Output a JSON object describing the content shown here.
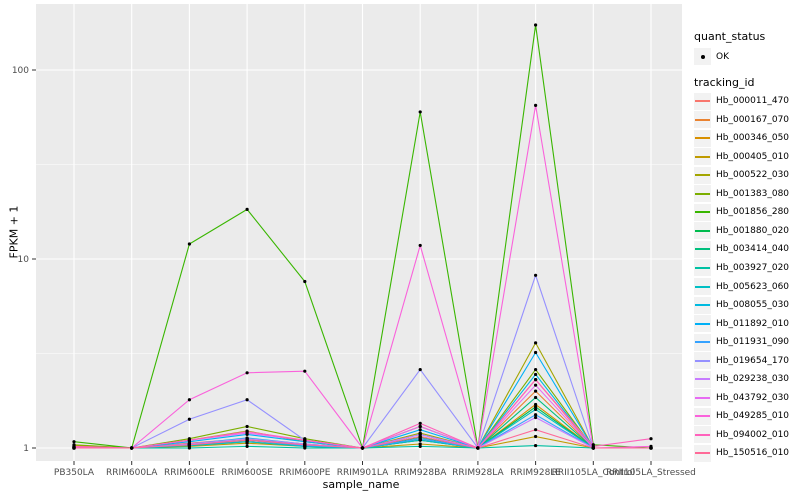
{
  "colors": {
    "panel_bg": "#EBEBEB",
    "grid": "#FFFFFF",
    "tick_text": "#4D4D4D",
    "tick_mark": "#333333",
    "text": "#000000",
    "point": "#000000",
    "legend_key_bg": "#F2F2F2"
  },
  "axes": {
    "x": {
      "title": "sample_name",
      "tick_labels": [
        "PB350LA",
        "RRIM600LA",
        "RRIM600LE",
        "RRIM600SE",
        "RRIM600PE",
        "RRIM901LA",
        "RRIM928BA",
        "RRIM928LA",
        "RRIM928LE",
        "RRII105LA_Control",
        "RRII105LA_Stressed"
      ]
    },
    "y": {
      "title": "FPKM + 1",
      "scale": "log10",
      "tick_labels": [
        "100",
        "10",
        "1"
      ],
      "tick_values": [
        100,
        10,
        1
      ],
      "minor_values": [
        31.623,
        3.1623
      ]
    }
  },
  "legend": {
    "quant_status": {
      "title": "quant_status",
      "items": [
        {
          "label": "OK",
          "marker": "black-point"
        }
      ]
    },
    "tracking_id": {
      "title": "tracking_id",
      "items": [
        {
          "label": "Hb_000011_470",
          "color": "#F8766D"
        },
        {
          "label": "Hb_000167_070",
          "color": "#EA8331"
        },
        {
          "label": "Hb_000346_050",
          "color": "#D89000"
        },
        {
          "label": "Hb_000405_010",
          "color": "#C09B00"
        },
        {
          "label": "Hb_000522_030",
          "color": "#A3A500"
        },
        {
          "label": "Hb_001383_080",
          "color": "#7CAE00"
        },
        {
          "label": "Hb_001856_280",
          "color": "#39B600"
        },
        {
          "label": "Hb_001880_020",
          "color": "#00BB4E"
        },
        {
          "label": "Hb_003414_040",
          "color": "#00BF7D"
        },
        {
          "label": "Hb_003927_020",
          "color": "#00C1A3"
        },
        {
          "label": "Hb_005623_060",
          "color": "#00BFC4"
        },
        {
          "label": "Hb_008055_030",
          "color": "#00BAE0"
        },
        {
          "label": "Hb_011892_010",
          "color": "#00B0F6"
        },
        {
          "label": "Hb_011931_090",
          "color": "#35A2FF"
        },
        {
          "label": "Hb_019654_170",
          "color": "#9590FF"
        },
        {
          "label": "Hb_029238_030",
          "color": "#C77CFF"
        },
        {
          "label": "Hb_043792_030",
          "color": "#E76BF3"
        },
        {
          "label": "Hb_049285_010",
          "color": "#FA62DB"
        },
        {
          "label": "Hb_094002_010",
          "color": "#FF62BC"
        },
        {
          "label": "Hb_150516_010",
          "color": "#FF6A98"
        }
      ]
    }
  },
  "chart_data": {
    "type": "line",
    "title": "",
    "xlabel": "sample_name",
    "ylabel": "FPKM + 1",
    "y_scale": "log10",
    "ylim": [
      0.95,
      210
    ],
    "y_ticks": [
      1,
      10,
      100
    ],
    "grid": true,
    "legend_position": "right",
    "point_marker": "small black dot at every data point (quant_status = OK)",
    "categories": [
      "PB350LA",
      "RRIM600LA",
      "RRIM600LE",
      "RRIM600SE",
      "RRIM600PE",
      "RRIM901LA",
      "RRIM928BA",
      "RRIM928LA",
      "RRIM928LE",
      "RRII105LA_Control",
      "RRII105LA_Stressed"
    ],
    "series": [
      {
        "name": "Hb_000011_470",
        "color": "#F8766D",
        "values": [
          1.02,
          1,
          1.06,
          1.12,
          1.05,
          1,
          1.12,
          1,
          2.3,
          1,
          1
        ]
      },
      {
        "name": "Hb_000167_070",
        "color": "#EA8331",
        "values": [
          1.01,
          1,
          1.04,
          1.1,
          1.03,
          1,
          1.15,
          1,
          2.0,
          1,
          1
        ]
      },
      {
        "name": "Hb_000346_050",
        "color": "#D89000",
        "values": [
          1.03,
          1,
          1.05,
          1.12,
          1.04,
          1,
          1.1,
          1,
          1.7,
          1,
          1
        ]
      },
      {
        "name": "Hb_000405_010",
        "color": "#C09B00",
        "values": [
          1,
          1,
          1.02,
          1.06,
          1.02,
          1,
          1.05,
          1,
          1.15,
          1,
          1
        ]
      },
      {
        "name": "Hb_000522_030",
        "color": "#A3A500",
        "values": [
          1.02,
          1,
          1.1,
          1.23,
          1.08,
          1,
          1.2,
          1,
          3.6,
          1,
          1
        ]
      },
      {
        "name": "Hb_001383_080",
        "color": "#7CAE00",
        "values": [
          1.04,
          1,
          1.12,
          1.3,
          1.12,
          1,
          1.3,
          1,
          2.6,
          1,
          1
        ]
      },
      {
        "name": "Hb_001856_280",
        "color": "#39B600",
        "values": [
          1.08,
          1,
          12,
          18.3,
          7.6,
          1,
          60,
          1,
          173,
          1.04,
          1
        ]
      },
      {
        "name": "Hb_001880_020",
        "color": "#00BB4E",
        "values": [
          1,
          1,
          1.04,
          1.1,
          1.04,
          1,
          1.14,
          1,
          1.65,
          1,
          1
        ]
      },
      {
        "name": "Hb_003414_040",
        "color": "#00BF7D",
        "values": [
          1,
          1,
          1.03,
          1.08,
          1.02,
          1,
          1.1,
          1,
          1.85,
          1,
          1
        ]
      },
      {
        "name": "Hb_003927_020",
        "color": "#00C1A3",
        "values": [
          1,
          1,
          1,
          1.02,
          1,
          1,
          1.02,
          1,
          1.03,
          1,
          1
        ]
      },
      {
        "name": "Hb_005623_060",
        "color": "#00BFC4",
        "values": [
          1,
          1,
          1.03,
          1.08,
          1.02,
          1,
          1.1,
          1,
          1.6,
          1,
          1
        ]
      },
      {
        "name": "Hb_008055_030",
        "color": "#00BAE0",
        "values": [
          1,
          1,
          1.05,
          1.13,
          1.05,
          1,
          1.18,
          1,
          2.45,
          1,
          1
        ]
      },
      {
        "name": "Hb_011892_010",
        "color": "#00B0F6",
        "values": [
          1,
          1,
          1.08,
          1.18,
          1.08,
          1,
          1.25,
          1,
          3.2,
          1,
          1
        ]
      },
      {
        "name": "Hb_011931_090",
        "color": "#35A2FF",
        "values": [
          1,
          1,
          1.04,
          1.1,
          1.03,
          1,
          1.12,
          1,
          1.5,
          1,
          1
        ]
      },
      {
        "name": "Hb_019654_170",
        "color": "#9590FF",
        "values": [
          1,
          1,
          1.42,
          1.8,
          1.1,
          1,
          2.6,
          1,
          8.2,
          1,
          1
        ]
      },
      {
        "name": "Hb_029238_030",
        "color": "#C77CFF",
        "values": [
          1,
          1,
          1.05,
          1.12,
          1.05,
          1,
          1.18,
          1,
          1.45,
          1,
          1
        ]
      },
      {
        "name": "Hb_043792_030",
        "color": "#E76BF3",
        "values": [
          1,
          1,
          1.1,
          1.2,
          1.1,
          1,
          1.3,
          1,
          2.15,
          1,
          1
        ]
      },
      {
        "name": "Hb_049285_010",
        "color": "#FA62DB",
        "values": [
          1.01,
          1,
          1.8,
          2.5,
          2.55,
          1,
          11.8,
          1,
          65,
          1,
          1.02
        ]
      },
      {
        "name": "Hb_094002_010",
        "color": "#FF62BC",
        "values": [
          1.02,
          1,
          1.1,
          1.22,
          1.1,
          1,
          1.35,
          1,
          2.3,
          1.02,
          1.12
        ]
      },
      {
        "name": "Hb_150516_010",
        "color": "#FF6A98",
        "values": [
          1,
          1,
          1.04,
          1.1,
          1.04,
          1,
          1.15,
          1,
          1.25,
          1,
          1
        ]
      }
    ]
  }
}
